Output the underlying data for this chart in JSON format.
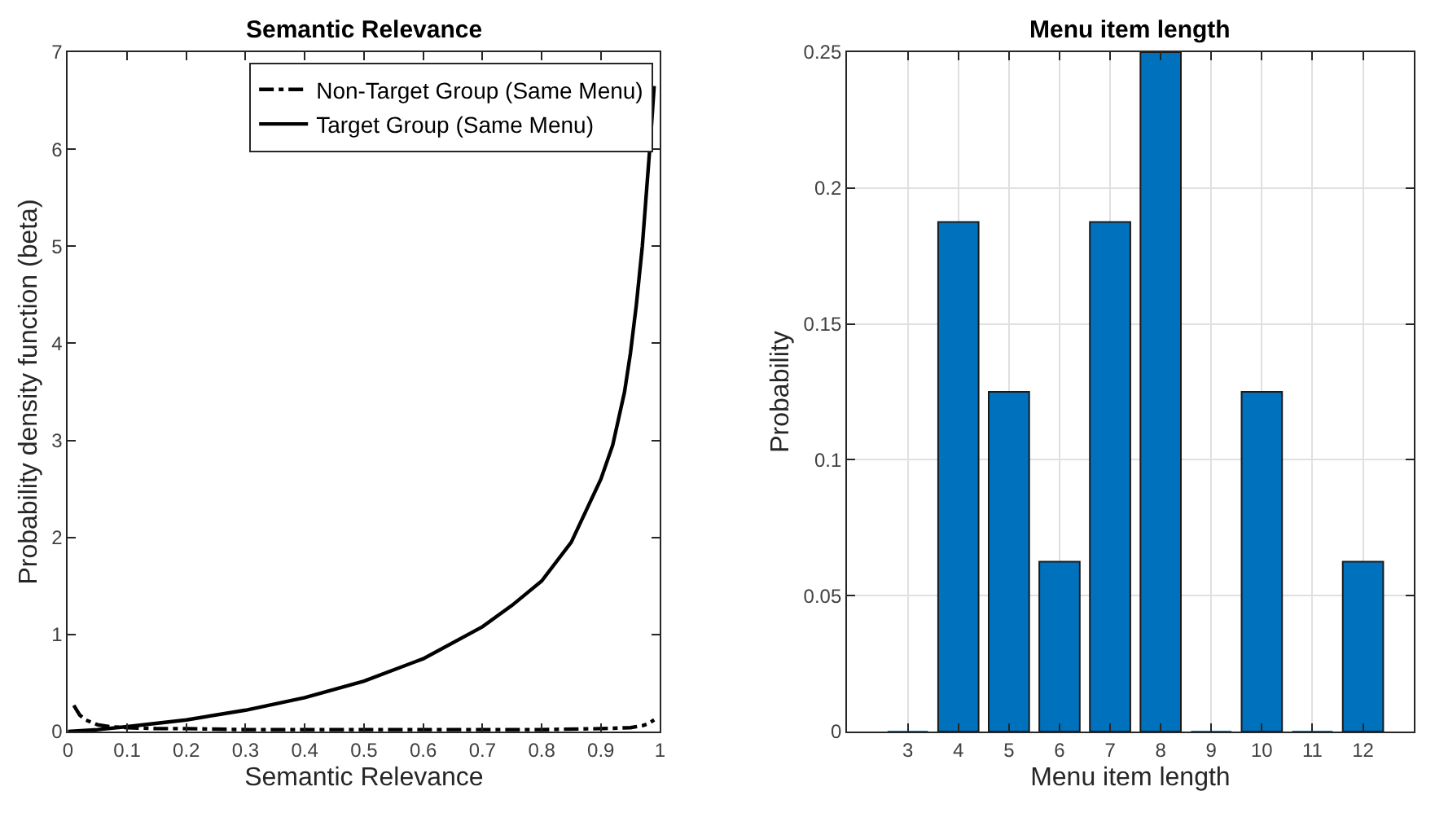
{
  "chart_data": [
    {
      "type": "line",
      "title": "Semantic Relevance",
      "xlabel": "Semantic Relevance",
      "ylabel": "Probability density function (beta)",
      "xlim": [
        0,
        1
      ],
      "ylim": [
        0,
        7
      ],
      "xticks": [
        0,
        0.1,
        0.2,
        0.3,
        0.4,
        0.5,
        0.6,
        0.7,
        0.8,
        0.9,
        1
      ],
      "yticks": [
        0,
        1,
        2,
        3,
        4,
        5,
        6,
        7
      ],
      "grid": false,
      "legend": "top right",
      "marker": "none",
      "series": [
        {
          "name": "Non-Target Group (Same Menu)",
          "color": "#000000",
          "line_style": "dashdot",
          "x": [
            0.01,
            0.02,
            0.03,
            0.05,
            0.07,
            0.1,
            0.15,
            0.2,
            0.3,
            0.5,
            0.7,
            0.8,
            0.9,
            0.95,
            0.97,
            0.98,
            0.99
          ],
          "values": [
            0.27,
            0.17,
            0.12,
            0.07,
            0.05,
            0.04,
            0.03,
            0.03,
            0.02,
            0.02,
            0.02,
            0.02,
            0.03,
            0.04,
            0.06,
            0.08,
            0.12
          ]
        },
        {
          "name": "Target Group (Same Menu)",
          "color": "#000000",
          "line_style": "solid",
          "x": [
            0,
            0.05,
            0.1,
            0.2,
            0.3,
            0.4,
            0.5,
            0.6,
            0.7,
            0.75,
            0.8,
            0.85,
            0.9,
            0.92,
            0.94,
            0.95,
            0.96,
            0.97,
            0.98,
            0.985,
            0.99
          ],
          "values": [
            0,
            0.02,
            0.05,
            0.12,
            0.22,
            0.35,
            0.52,
            0.75,
            1.08,
            1.3,
            1.55,
            1.95,
            2.6,
            2.95,
            3.5,
            3.9,
            4.4,
            5.0,
            5.8,
            6.2,
            6.65
          ]
        }
      ]
    },
    {
      "type": "bar",
      "title": "Menu item length",
      "xlabel": "Menu item length",
      "ylabel": "Probability",
      "x": [
        3,
        4,
        5,
        6,
        7,
        8,
        9,
        10,
        11,
        12
      ],
      "values": [
        0,
        0.1875,
        0.125,
        0.0625,
        0.1875,
        0.25,
        0,
        0.125,
        0,
        0.0625
      ],
      "color": "#0072bd",
      "xlim": [
        1.8,
        13
      ],
      "ylim": [
        0,
        0.25
      ],
      "xticks": [
        3,
        4,
        5,
        6,
        7,
        8,
        9,
        10,
        11,
        12
      ],
      "yticks": [
        0,
        0.05,
        0.1,
        0.15,
        0.2,
        0.25
      ],
      "grid": true,
      "legend": false
    }
  ]
}
